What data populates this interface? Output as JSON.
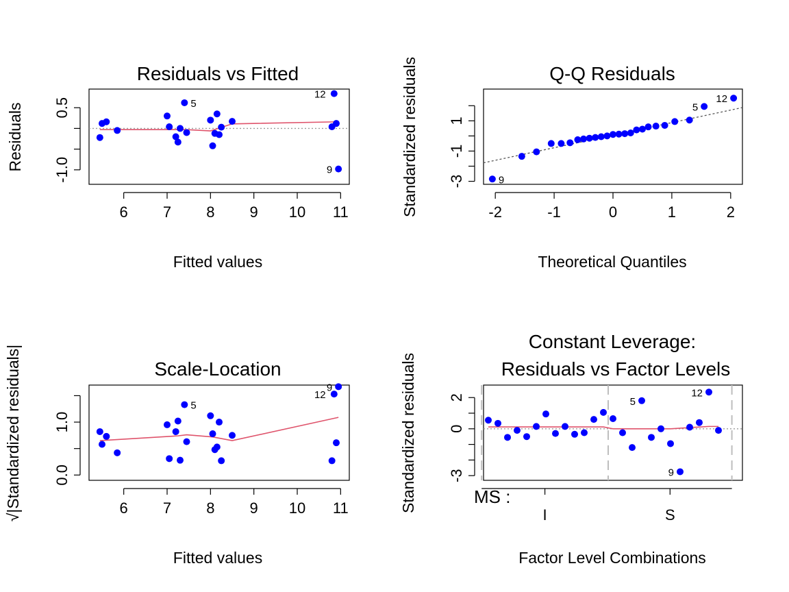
{
  "chart_data": [
    {
      "id": "rvf",
      "type": "scatter",
      "title": "Residuals vs Fitted",
      "xlabel": "Fitted values",
      "ylabel": "Residuals",
      "xlim": [
        5.2,
        11.2
      ],
      "ylim": [
        -1.35,
        0.95
      ],
      "xticks": [
        6,
        7,
        8,
        9,
        10,
        11
      ],
      "xtick_labels": [
        "6",
        "7",
        "8",
        "9",
        "10",
        "11"
      ],
      "yticks": [
        -1.0,
        -0.5,
        0.0,
        0.5
      ],
      "ytick_labels": [
        "-1.0",
        "",
        "",
        "0.5"
      ],
      "points": {
        "x": [
          5.45,
          5.5,
          5.6,
          5.85,
          7.0,
          7.05,
          7.2,
          7.25,
          7.3,
          7.4,
          7.45,
          8.0,
          8.05,
          8.1,
          8.15,
          8.2,
          8.25,
          8.5,
          10.8,
          10.85,
          10.9,
          10.95
        ],
        "y": [
          -0.22,
          0.12,
          0.16,
          -0.05,
          0.3,
          0.04,
          -0.2,
          -0.33,
          0.0,
          0.62,
          -0.1,
          0.2,
          -0.42,
          -0.12,
          0.35,
          -0.15,
          0.03,
          0.17,
          0.04,
          0.84,
          0.12,
          -0.98
        ]
      },
      "labels": [
        {
          "text": "5",
          "x": 7.4,
          "y": 0.62,
          "side": "right"
        },
        {
          "text": "12",
          "x": 10.8,
          "y": 0.84,
          "side": "left"
        },
        {
          "text": "9",
          "x": 10.95,
          "y": -0.98,
          "side": "left"
        }
      ],
      "smooth": {
        "x": [
          5.45,
          7.45,
          8.0,
          8.5,
          10.95
        ],
        "y": [
          -0.03,
          -0.03,
          -0.06,
          0.11,
          0.16
        ]
      },
      "refline": {
        "type": "h",
        "value": 0,
        "style": "dotted-gray"
      },
      "point_color": "#0000ff",
      "smooth_color": "#df536b"
    },
    {
      "id": "qq",
      "type": "scatter",
      "title": "Q-Q Residuals",
      "xlabel": "Theoretical Quantiles",
      "ylabel": "Standardized residuals",
      "xlim": [
        -2.2,
        2.2
      ],
      "ylim": [
        -3.2,
        3.1
      ],
      "xticks": [
        -2,
        -1,
        0,
        1,
        2
      ],
      "xtick_labels": [
        "-2",
        "-1",
        "0",
        "1",
        "2"
      ],
      "yticks": [
        -3,
        -2,
        -1,
        0,
        1,
        2
      ],
      "ytick_labels": [
        "-3",
        "",
        "-1",
        "",
        "1",
        ""
      ],
      "points": {
        "x": [
          -2.05,
          -1.55,
          -1.3,
          -1.05,
          -0.88,
          -0.73,
          -0.6,
          -0.5,
          -0.4,
          -0.3,
          -0.2,
          -0.1,
          0.0,
          0.1,
          0.2,
          0.3,
          0.4,
          0.5,
          0.6,
          0.73,
          0.88,
          1.05,
          1.3,
          1.55,
          2.05
        ],
        "y": [
          -2.85,
          -1.35,
          -1.05,
          -0.5,
          -0.5,
          -0.45,
          -0.25,
          -0.2,
          -0.15,
          -0.1,
          -0.05,
          0.0,
          0.1,
          0.12,
          0.15,
          0.2,
          0.4,
          0.45,
          0.6,
          0.65,
          0.7,
          0.95,
          1.05,
          1.95,
          2.5
        ]
      },
      "labels": [
        {
          "text": "9",
          "x": -2.05,
          "y": -2.85,
          "side": "right"
        },
        {
          "text": "5",
          "x": 1.55,
          "y": 1.95,
          "side": "left"
        },
        {
          "text": "12",
          "x": 2.05,
          "y": 2.5,
          "side": "left"
        }
      ],
      "refline": {
        "type": "ab",
        "intercept": 0.05,
        "slope": 0.83,
        "style": "dotted-gray"
      },
      "point_color": "#0000ff"
    },
    {
      "id": "sl",
      "type": "scatter",
      "title": "Scale-Location",
      "xlabel": "Fitted values",
      "ylabel": "√|Standardized residuals|",
      "xlim": [
        5.2,
        11.2
      ],
      "ylim": [
        -0.1,
        1.7
      ],
      "xticks": [
        6,
        7,
        8,
        9,
        10,
        11
      ],
      "xtick_labels": [
        "6",
        "7",
        "8",
        "9",
        "10",
        "11"
      ],
      "yticks": [
        0.0,
        0.5,
        1.0,
        1.5
      ],
      "ytick_labels": [
        "0.0",
        "",
        "1.0",
        ""
      ],
      "points": {
        "x": [
          5.45,
          5.5,
          5.6,
          5.85,
          7.0,
          7.05,
          7.2,
          7.25,
          7.3,
          7.4,
          7.45,
          8.0,
          8.05,
          8.1,
          8.15,
          8.2,
          8.25,
          8.5,
          10.8,
          10.85,
          10.9,
          10.95
        ],
        "y": [
          0.82,
          0.58,
          0.73,
          0.42,
          0.95,
          0.31,
          0.82,
          1.02,
          0.28,
          1.33,
          0.63,
          1.12,
          0.78,
          0.48,
          0.53,
          1.0,
          0.27,
          0.75,
          0.27,
          1.53,
          0.61,
          1.67
        ]
      },
      "labels": [
        {
          "text": "5",
          "x": 7.4,
          "y": 1.33,
          "side": "right"
        },
        {
          "text": "12",
          "x": 10.8,
          "y": 1.53,
          "side": "left"
        },
        {
          "text": "9",
          "x": 10.95,
          "y": 1.67,
          "side": "left"
        }
      ],
      "smooth": {
        "x": [
          5.45,
          7.25,
          7.45,
          8.05,
          8.5,
          10.95
        ],
        "y": [
          0.65,
          0.74,
          0.76,
          0.72,
          0.65,
          1.09
        ]
      },
      "point_color": "#0000ff",
      "smooth_color": "#df536b"
    },
    {
      "id": "fl",
      "type": "scatter",
      "title": "Constant Leverage:",
      "subtitle": "Residuals vs Factor Levels",
      "xlabel": "Factor Level Combinations",
      "ylabel": "Standardized residuals",
      "factor_name": "MS :",
      "factor_levels": [
        "I",
        "S"
      ],
      "xlim": [
        0.5,
        27.5
      ],
      "ylim": [
        -3.3,
        2.8
      ],
      "yticks": [
        -3,
        -2,
        -1,
        0,
        1,
        2
      ],
      "ytick_labels": [
        "-3",
        "",
        "",
        "0",
        "",
        "2"
      ],
      "points": {
        "x": [
          1,
          2,
          3,
          4,
          5,
          6,
          7,
          8,
          9,
          10,
          11,
          12,
          13,
          14,
          15,
          16,
          17,
          18,
          19,
          20,
          21,
          22,
          23,
          24,
          25
        ],
        "y": [
          0.55,
          0.35,
          -0.55,
          -0.1,
          -0.5,
          0.15,
          0.95,
          -0.3,
          0.15,
          -0.35,
          -0.25,
          0.6,
          1.05,
          0.65,
          -0.25,
          -1.2,
          1.8,
          -0.55,
          0.0,
          -0.95,
          -2.75,
          0.1,
          0.4,
          2.35,
          -0.1
        ]
      },
      "labels": [
        {
          "text": "5",
          "x": 17,
          "y": 1.8,
          "side": "left"
        },
        {
          "text": "12",
          "x": 24,
          "y": 2.35,
          "side": "left"
        },
        {
          "text": "9",
          "x": 21,
          "y": -2.75,
          "side": "left"
        }
      ],
      "smooth": {
        "x": [
          1,
          13,
          14,
          20,
          24,
          25
        ],
        "y": [
          0.12,
          0.12,
          0.0,
          0.0,
          0.15,
          0.15
        ]
      },
      "refline": {
        "type": "h",
        "value": 0,
        "style": "dotted-gray"
      },
      "point_color": "#0000ff",
      "smooth_color": "#df536b"
    }
  ]
}
